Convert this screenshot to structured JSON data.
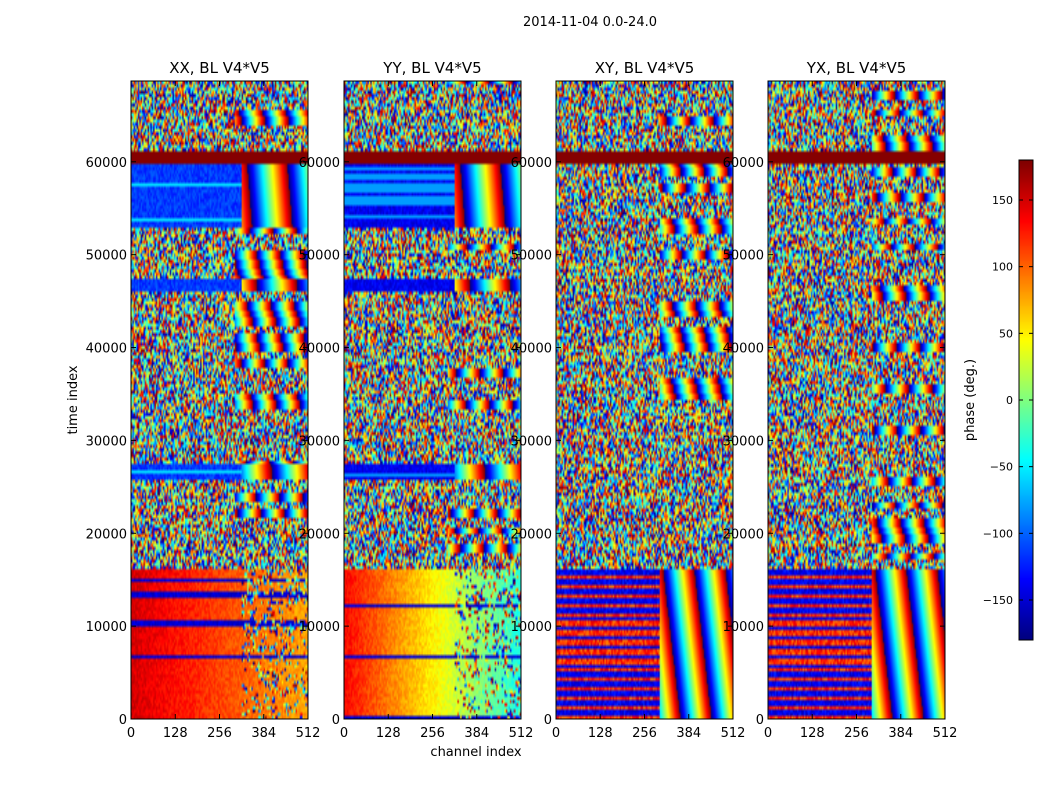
{
  "figure_title": "2014-11-04 0.0-24.0",
  "chart_data": {
    "type": "heatmap",
    "xlabel": "channel index",
    "ylabel": "time index",
    "x_ticks": [
      0,
      128,
      256,
      384,
      512
    ],
    "x_tick_labels": [
      "0",
      "128",
      "256",
      "384",
      "512"
    ],
    "xlim": [
      0,
      512
    ],
    "y_ticks": [
      0,
      10000,
      20000,
      30000,
      40000,
      50000,
      60000
    ],
    "y_tick_labels": [
      "0",
      "10000",
      "20000",
      "30000",
      "40000",
      "50000",
      "60000"
    ],
    "ylim": [
      0,
      68700
    ],
    "panels": [
      {
        "title": "XX, BL V4*V5",
        "mode": "parallel",
        "low_band_phase": 150,
        "low_band_right_phase": 75,
        "blue_phase": -115
      },
      {
        "title": "YY, BL V4*V5",
        "mode": "parallel",
        "low_band_phase": 135,
        "low_band_right_phase": -35,
        "blue_phase": -140
      },
      {
        "title": "XY, BL V4*V5",
        "mode": "cross"
      },
      {
        "title": "YX, BL V4*V5",
        "mode": "cross"
      }
    ],
    "colorbar": {
      "label": "phase (deg.)",
      "ticks": [
        150,
        100,
        50,
        0,
        -50,
        -100,
        -150
      ],
      "tick_labels": [
        "150",
        "100",
        "50",
        "0",
        "−50",
        "−100",
        "−150"
      ],
      "range": [
        -180,
        180
      ],
      "colormap": "jet"
    },
    "bands": {
      "saturated_band": [
        59600,
        61300
      ],
      "blue_band_1": [
        53000,
        59600
      ],
      "blue_band_2": [
        46000,
        47400
      ],
      "blue_band_3": [
        25800,
        27500
      ],
      "low_band": [
        0,
        16000
      ]
    }
  },
  "colors": {
    "frame": "#000000",
    "saturated": "#800000"
  }
}
